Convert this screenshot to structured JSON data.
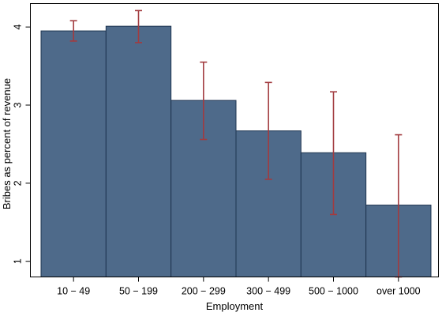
{
  "chart_data": {
    "type": "bar",
    "xlabel": "Employment",
    "ylabel": "Bribes as percent of revenue",
    "categories": [
      "10 − 49",
      "50 − 199",
      "200 − 299",
      "300 − 499",
      "500 − 1000",
      "over 1000"
    ],
    "values": [
      3.95,
      4.01,
      3.06,
      2.67,
      2.39,
      1.72
    ],
    "error_low": [
      3.82,
      3.8,
      2.56,
      2.05,
      1.6,
      0.8
    ],
    "error_high": [
      4.08,
      4.21,
      3.55,
      3.29,
      3.17,
      2.62
    ],
    "yticks": [
      1,
      2,
      3,
      4
    ],
    "ylim": [
      0.8,
      4.3
    ],
    "grid": false,
    "legend": "none",
    "colors": {
      "bar_fill": "#4e6a8a",
      "bar_edge": "#1f3550",
      "error_bar": "#a23b3f",
      "axis": "#000000"
    }
  }
}
